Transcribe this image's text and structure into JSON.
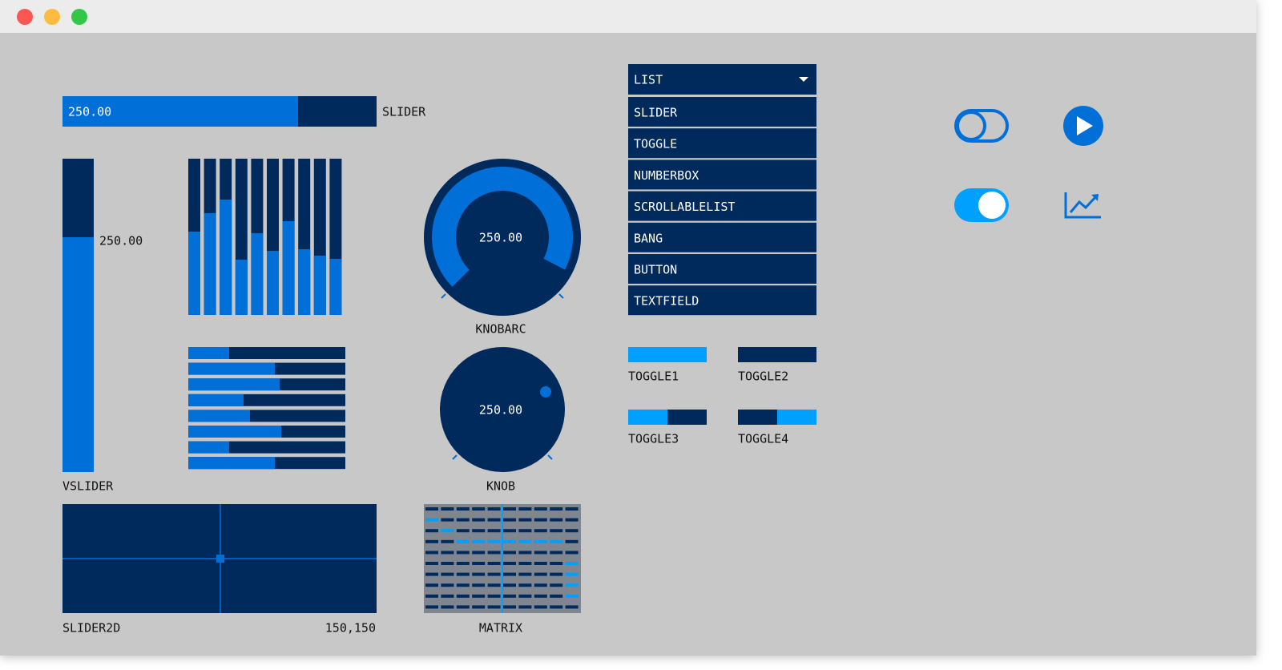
{
  "slider": {
    "value": "250.00",
    "label": "SLIDER"
  },
  "vslider": {
    "value": "250.00",
    "label": "VSLIDER"
  },
  "knobarc": {
    "value": "250.00",
    "label": "KNOBARC"
  },
  "knob": {
    "value": "250.00",
    "label": "KNOB"
  },
  "slider2d": {
    "label": "SLIDER2D",
    "value": "150,150"
  },
  "matrix": {
    "label": "MATRIX"
  },
  "list": {
    "title": "LIST",
    "items": [
      "SLIDER",
      "TOGGLE",
      "NUMBERBOX",
      "SCROLLABLELIST",
      "BANG",
      "BUTTON",
      "TEXTFIELD"
    ]
  },
  "toggles": [
    "TOGGLE1",
    "TOGGLE2",
    "TOGGLE3",
    "TOGGLE4"
  ]
}
